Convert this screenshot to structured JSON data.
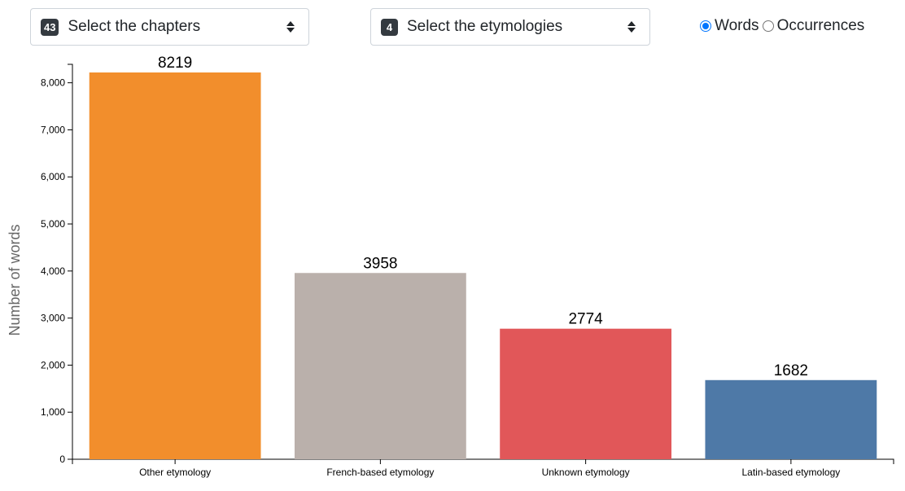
{
  "controls": {
    "chapters": {
      "count": "43",
      "label": "Select the chapters"
    },
    "etymologies": {
      "count": "4",
      "label": "Select the etymologies"
    },
    "mode": {
      "options": [
        {
          "label": "Words",
          "checked": true
        },
        {
          "label": "Occurrences",
          "checked": false
        }
      ]
    }
  },
  "chart_data": {
    "type": "bar",
    "categories": [
      "Other etymology",
      "French-based etymology",
      "Unknown etymology",
      "Latin-based etymology"
    ],
    "values": [
      8219,
      3958,
      2774,
      1682
    ],
    "colors": [
      "#f28e2c",
      "#bab0ab",
      "#e15759",
      "#4e79a7"
    ],
    "ylabel": "Number of words",
    "ylim": [
      0,
      8219
    ],
    "yticks": [
      0,
      1000,
      2000,
      3000,
      4000,
      5000,
      6000,
      7000,
      8000
    ],
    "ytick_labels": [
      "0",
      "1,000",
      "2,000",
      "3,000",
      "4,000",
      "5,000",
      "6,000",
      "7,000",
      "8,000"
    ],
    "grid": false
  }
}
